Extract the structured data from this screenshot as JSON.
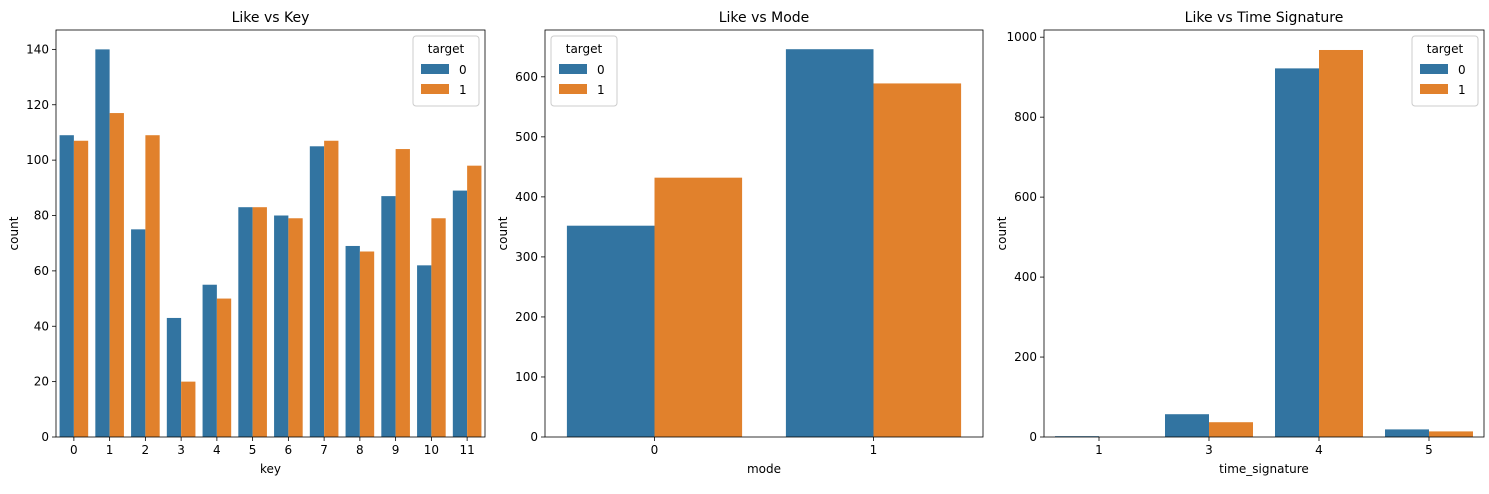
{
  "colors": {
    "series0": "#3274a1",
    "series1": "#e1812c"
  },
  "chart_data": [
    {
      "type": "bar",
      "title": "Like vs Key",
      "xlabel": "key",
      "ylabel": "count",
      "categories": [
        "0",
        "1",
        "2",
        "3",
        "4",
        "5",
        "6",
        "7",
        "8",
        "9",
        "10",
        "11"
      ],
      "series": [
        {
          "name": "0",
          "values": [
            109,
            140,
            75,
            43,
            55,
            83,
            80,
            105,
            69,
            87,
            62,
            89
          ]
        },
        {
          "name": "1",
          "values": [
            107,
            117,
            109,
            20,
            50,
            83,
            79,
            107,
            67,
            104,
            79,
            98
          ]
        }
      ],
      "ylim": [
        0,
        147
      ],
      "yticks": [
        0,
        20,
        40,
        60,
        80,
        100,
        120,
        140
      ],
      "legend": {
        "title": "target",
        "placement": "top-right"
      },
      "grid": false
    },
    {
      "type": "bar",
      "title": "Like vs Mode",
      "xlabel": "mode",
      "ylabel": "count",
      "categories": [
        "0",
        "1"
      ],
      "series": [
        {
          "name": "0",
          "values": [
            352,
            646
          ]
        },
        {
          "name": "1",
          "values": [
            432,
            589
          ]
        }
      ],
      "ylim": [
        0,
        678
      ],
      "yticks": [
        0,
        100,
        200,
        300,
        400,
        500,
        600
      ],
      "legend": {
        "title": "target",
        "placement": "top-left"
      },
      "grid": false
    },
    {
      "type": "bar",
      "title": "Like vs Time Signature",
      "xlabel": "time_signature",
      "ylabel": "count",
      "categories": [
        "1",
        "3",
        "4",
        "5"
      ],
      "series": [
        {
          "name": "0",
          "values": [
            2,
            57,
            922,
            19
          ]
        },
        {
          "name": "1",
          "values": [
            0,
            37,
            968,
            14
          ]
        }
      ],
      "ylim": [
        0,
        1018
      ],
      "yticks": [
        0,
        200,
        400,
        600,
        800,
        1000
      ],
      "legend": {
        "title": "target",
        "placement": "top-right"
      },
      "grid": false
    }
  ]
}
